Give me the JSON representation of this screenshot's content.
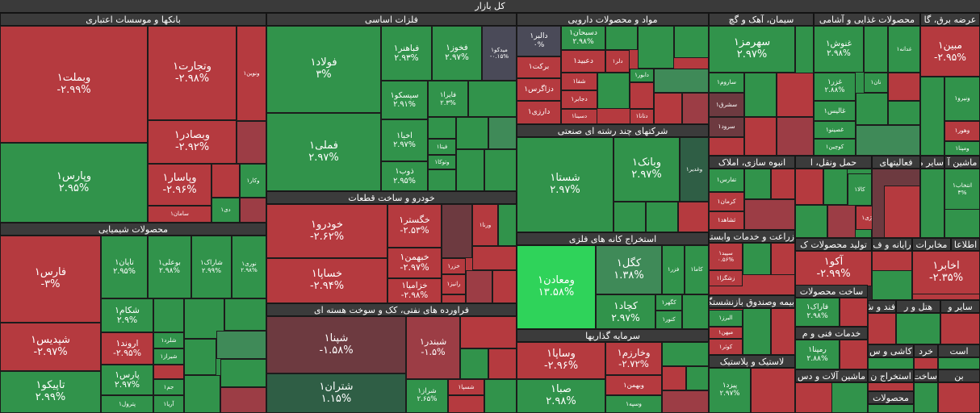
{
  "title": "کل بازار",
  "sectors": [
    {
      "title": "بانکها و موسسات اعتباری",
      "tiles": [
        {
          "name": "وبملت۱",
          "change": "-۲.۹۹%"
        },
        {
          "name": "وپارس۱",
          "change": "۲.۹۵%"
        },
        {
          "name": "وتجارت۱",
          "change": "-۲.۹۸%"
        },
        {
          "name": "وبصادر۱",
          "change": "-۲.۹۲%"
        },
        {
          "name": "وپاسار۱",
          "change": "-۲.۹۶%"
        },
        {
          "name": "سامان۱"
        },
        {
          "name": "ونوین۱"
        },
        {
          "name": "وکار۱"
        },
        {
          "name": "دی۱"
        }
      ]
    },
    {
      "title": "محصولات شیمیایی",
      "tiles": [
        {
          "name": "فارس۱",
          "change": "-۳%"
        },
        {
          "name": "شپدیس۱",
          "change": "-۲.۹۷%"
        },
        {
          "name": "تاپیکو۱",
          "change": "۲.۹۹%"
        },
        {
          "name": "تاپان۱",
          "change": "۲.۹۵%"
        },
        {
          "name": "بوعلی۱",
          "change": "۲.۹۸%"
        },
        {
          "name": "شاراک۱",
          "change": "۲.۹۹%"
        },
        {
          "name": "نوری۱",
          "change": "۲.۹۸%"
        },
        {
          "name": "شکام۱",
          "change": "۲.۹%"
        },
        {
          "name": "اروند۱",
          "change": "-۲.۹۵%"
        },
        {
          "name": "پارس۱",
          "change": "۲.۹۷%"
        },
        {
          "name": "پترول۱"
        },
        {
          "name": "شلرد۱"
        },
        {
          "name": "شیراز۱"
        },
        {
          "name": "جم۱"
        },
        {
          "name": "آریا۱"
        }
      ]
    },
    {
      "title": "فلزات اساسی",
      "tiles": [
        {
          "name": "فولاد۱",
          "change": "۳%"
        },
        {
          "name": "فملی۱",
          "change": "۲.۹۷%"
        },
        {
          "name": "فباهنر۱",
          "change": "۲.۹۳%"
        },
        {
          "name": "فخوز۱",
          "change": "۲.۹۷%"
        },
        {
          "name": "میدکو۱",
          "change": "-۰.۱۵%"
        },
        {
          "name": "سیسکو۱",
          "change": "۲.۹۱%"
        },
        {
          "name": "فایرا۱",
          "change": "۲.۳%"
        },
        {
          "name": "اخیا۱",
          "change": "۲.۹۷%"
        },
        {
          "name": "ذوب۱",
          "change": "۲.۹۵%"
        },
        {
          "name": "فیتا۱"
        },
        {
          "name": "وتوکا۱"
        }
      ]
    },
    {
      "title": "خودرو و ساخت قطعات",
      "tiles": [
        {
          "name": "خودرو۱",
          "change": "-۲.۶۲%"
        },
        {
          "name": "خساپا۱",
          "change": "-۲.۹۴%"
        },
        {
          "name": "خگستر۱",
          "change": "-۲.۵۳%"
        },
        {
          "name": "خبهمن۱",
          "change": "-۲.۹۷%"
        },
        {
          "name": "خزامیا۱",
          "change": "-۲.۹۸%"
        },
        {
          "name": "ورنا۱"
        },
        {
          "name": "خزر۱"
        },
        {
          "name": "رانیز۱"
        }
      ]
    },
    {
      "title": "فراورده های نفتی، کک و سوخت هسته ای",
      "tiles": [
        {
          "name": "شپنا۱",
          "change": "-۱.۵۸%"
        },
        {
          "name": "شتران۱",
          "change": "۱.۱۵%"
        },
        {
          "name": "شبندر۱",
          "change": "-۱.۵%"
        },
        {
          "name": "شراز۱",
          "change": "۲.۶۵%"
        },
        {
          "name": "شسپا۱"
        }
      ]
    },
    {
      "title": "مواد و محصولات دارویی",
      "tiles": [
        {
          "name": "دالبر۱",
          "change": "۰%"
        },
        {
          "name": "دسبحان۱",
          "change": "۲.۹۸%"
        },
        {
          "name": "برکت۱"
        },
        {
          "name": "دعبید۱"
        },
        {
          "name": "دلر۱"
        },
        {
          "name": "دابور۱"
        },
        {
          "name": "شفا۱"
        },
        {
          "name": "دزاگرس۱"
        },
        {
          "name": "دجابر۱"
        },
        {
          "name": "دارزی۱"
        },
        {
          "name": "دسینا۱"
        },
        {
          "name": "دتانا۱"
        }
      ]
    },
    {
      "title": "شرکتهای چند رشته ای صنعتی",
      "tiles": [
        {
          "name": "شستا۱",
          "change": "۲.۹۷%"
        },
        {
          "name": "وبانک۱",
          "change": "۲.۹۷%"
        },
        {
          "name": "وغدیر۱"
        }
      ]
    },
    {
      "title": "استخراج کانه های فلزی",
      "tiles": [
        {
          "name": "ومعادن۱",
          "change": "۱۳.۵۸%"
        },
        {
          "name": "کگل۱",
          "change": "۱.۳۸%"
        },
        {
          "name": "فزر۱"
        },
        {
          "name": "کاما۱"
        },
        {
          "name": "کچاد۱",
          "change": "۲.۹۷%"
        },
        {
          "name": "کگهر۱"
        },
        {
          "name": "کنور۱"
        }
      ]
    },
    {
      "title": "سرمایه گذاریها",
      "tiles": [
        {
          "name": "وساپا۱",
          "change": "-۲.۹۶%"
        },
        {
          "name": "وخارزم۱",
          "change": "-۲.۷۲%"
        },
        {
          "name": "وبهمن۱"
        },
        {
          "name": "صبا۱",
          "change": "۲.۹۸%"
        },
        {
          "name": "وسپه۱"
        }
      ]
    },
    {
      "title": "سیمان، آهک و گچ",
      "tiles": [
        {
          "name": "سهرمز۱",
          "change": "۲.۹۷%"
        },
        {
          "name": "ساروم۱"
        },
        {
          "name": "سشرق۱"
        },
        {
          "name": "سرود۱"
        }
      ]
    },
    {
      "title": "محصولات غذایی و آشامی",
      "tiles": [
        {
          "name": "غنوش۱",
          "change": "۲.۹۸%"
        },
        {
          "name": "غدانه۱"
        },
        {
          "name": "نان۱"
        },
        {
          "name": "غزر۱",
          "change": "۲.۸۸%"
        },
        {
          "name": "غالیس۱"
        },
        {
          "name": "غصینو۱"
        },
        {
          "name": "کوچین۱"
        }
      ]
    },
    {
      "title": "عرضه برق، گا",
      "tiles": [
        {
          "name": "مبین۱",
          "change": "-۲.۹۵%"
        },
        {
          "name": "ونیرو۱"
        },
        {
          "name": "وهور۱"
        },
        {
          "name": "ومپنا۱"
        }
      ]
    },
    {
      "title": "انبوه سازی، املاک",
      "tiles": [
        {
          "name": "تفارس۱"
        },
        {
          "name": "کرمان۱"
        },
        {
          "name": "ثشاهد۱"
        }
      ]
    },
    {
      "title": "حمل ونقل، ا",
      "tiles": [
        {
          "name": "کالا۱"
        },
        {
          "name": "انرژی۱"
        }
      ]
    },
    {
      "title": "فعالیتهای",
      "tiles": []
    },
    {
      "title": "سایر مح",
      "tiles": []
    },
    {
      "title": "ماشین آ",
      "tiles": [
        {
          "name": "انتخاب۱",
          "change": "۳%"
        }
      ]
    },
    {
      "title": "زراعت و خدمات وابسته",
      "tiles": [
        {
          "name": "سپید۱",
          "change": "۰.۵۶%"
        },
        {
          "name": "زشگزا۱"
        }
      ]
    },
    {
      "title": "تولید محصولات ک",
      "tiles": [
        {
          "name": "آکو۱",
          "change": "-۲.۹۹%"
        }
      ]
    },
    {
      "title": "رایانه و ف",
      "tiles": []
    },
    {
      "title": "مخابرات",
      "tiles": [
        {
          "name": "اخابر۱",
          "change": "-۲.۳۵%"
        }
      ]
    },
    {
      "title": "اطلاعا",
      "tiles": []
    },
    {
      "title": "ساخت محصولات",
      "tiles": [
        {
          "name": "فاراک۱",
          "change": "۲.۹۸%"
        }
      ]
    },
    {
      "title": "بیمه وصندوق بازنشستگی",
      "tiles": [
        {
          "name": "البرز۱"
        },
        {
          "name": "میهن۱"
        },
        {
          "name": "کوثر۱"
        }
      ]
    },
    {
      "title": "فند و ش",
      "tiles": []
    },
    {
      "title": "هتل و ر",
      "tiles": []
    },
    {
      "title": "سایر و",
      "tiles": []
    },
    {
      "title": "خدمات فنی و م",
      "tiles": [
        {
          "name": "رمپنا۱",
          "change": "۲.۸۸%"
        }
      ]
    },
    {
      "title": "لاستیک و پلاستیک",
      "tiles": [
        {
          "name": "پیزد۱",
          "change": "۲.۹۷%"
        }
      ]
    },
    {
      "title": "ماشین آلات و دس",
      "tiles": []
    },
    {
      "title": "کاشی و س",
      "tiles": []
    },
    {
      "title": "خرد",
      "tiles": []
    },
    {
      "title": "است",
      "tiles": []
    },
    {
      "title": "استخراج ن",
      "tiles": []
    },
    {
      "title": "ساخت",
      "tiles": []
    },
    {
      "title": "محصولات",
      "tiles": []
    },
    {
      "title": "بن",
      "tiles": []
    }
  ]
}
